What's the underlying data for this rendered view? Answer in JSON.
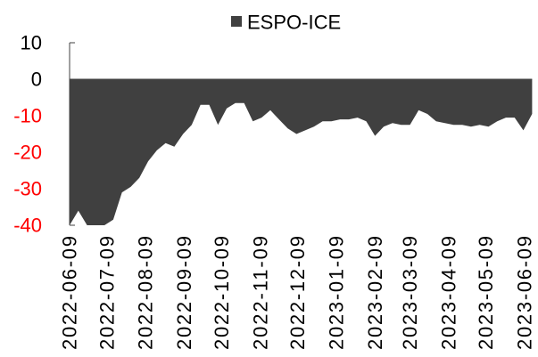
{
  "chart_data": {
    "type": "area",
    "series": [
      {
        "name": "ESPO-ICE",
        "color": "#404040",
        "x": [
          "2022-06-09",
          "2022-06-16",
          "2022-06-23",
          "2022-06-30",
          "2022-07-07",
          "2022-07-14",
          "2022-07-21",
          "2022-07-28",
          "2022-08-04",
          "2022-08-11",
          "2022-08-18",
          "2022-08-25",
          "2022-09-01",
          "2022-09-08",
          "2022-09-15",
          "2022-09-22",
          "2022-09-29",
          "2022-10-06",
          "2022-10-13",
          "2022-10-20",
          "2022-10-27",
          "2022-11-03",
          "2022-11-10",
          "2022-11-17",
          "2022-11-24",
          "2022-12-01",
          "2022-12-08",
          "2022-12-15",
          "2022-12-22",
          "2022-12-29",
          "2023-01-05",
          "2023-01-12",
          "2023-01-19",
          "2023-01-26",
          "2023-02-02",
          "2023-02-09",
          "2023-02-16",
          "2023-02-23",
          "2023-03-02",
          "2023-03-09",
          "2023-03-16",
          "2023-03-23",
          "2023-03-30",
          "2023-04-06",
          "2023-04-13",
          "2023-04-20",
          "2023-04-27",
          "2023-05-04",
          "2023-05-11",
          "2023-05-18",
          "2023-05-25",
          "2023-06-01",
          "2023-06-08",
          "2023-06-15"
        ],
        "y": [
          -40,
          -36,
          -40,
          -40,
          -40,
          -38.5,
          -31,
          -29.5,
          -27,
          -22.5,
          -19.5,
          -17.5,
          -18.5,
          -15,
          -12.5,
          -7,
          -7,
          -12.5,
          -8,
          -6.5,
          -6.5,
          -11.5,
          -10.5,
          -8.5,
          -11,
          -13.5,
          -15,
          -14,
          -13,
          -11.5,
          -11.5,
          -11,
          -11,
          -10.5,
          -11.5,
          -15.5,
          -13,
          -12,
          -12.5,
          -12.5,
          -8.5,
          -9.5,
          -11.5,
          -12,
          -12.5,
          -12.5,
          -13,
          -12.5,
          -13,
          -11.5,
          -10.5,
          -10.5,
          -14,
          -9.5
        ]
      }
    ],
    "xticks": [
      "2022-06-09",
      "2022-07-09",
      "2022-08-09",
      "2022-09-09",
      "2022-10-09",
      "2022-11-09",
      "2022-12-09",
      "2023-01-09",
      "2023-02-09",
      "2023-03-09",
      "2023-04-09",
      "2023-05-09",
      "2023-06-09"
    ],
    "xlim": [
      "2022-06-09",
      "2023-06-15"
    ],
    "yticks": [
      10,
      0,
      -10,
      -20,
      -30,
      -40
    ],
    "ylim": [
      -40,
      10
    ],
    "tick_label_color": "#000000",
    "negative_tick_label_color": "#FF0000",
    "grid": false,
    "legend": {
      "position": "top-center"
    }
  }
}
